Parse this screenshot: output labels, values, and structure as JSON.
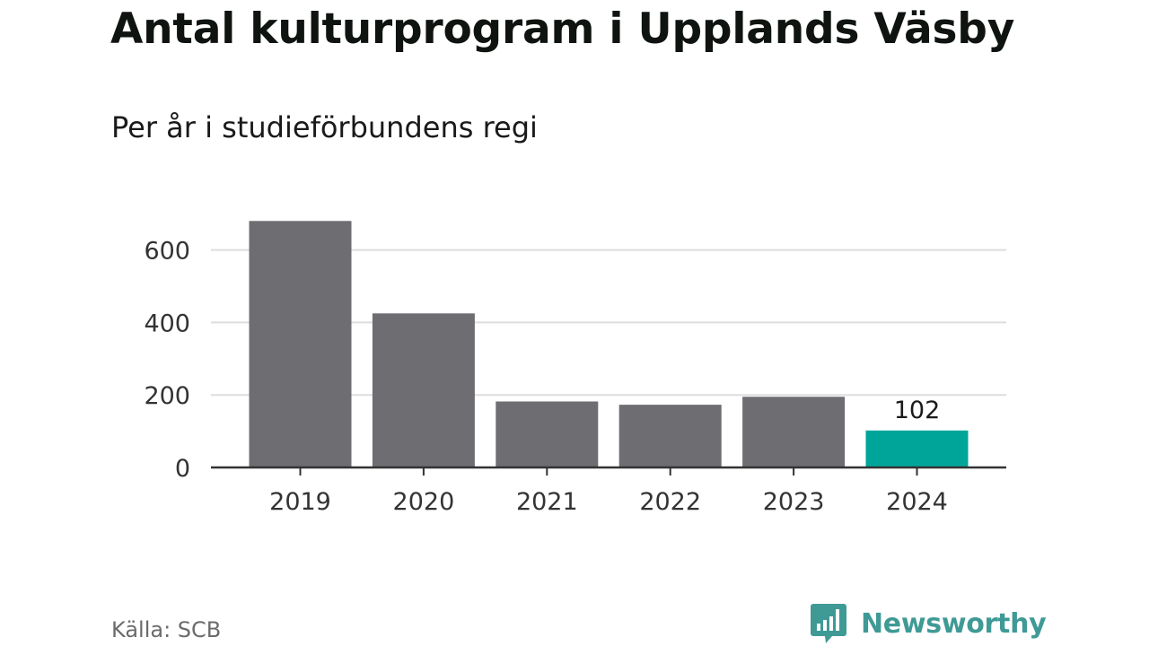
{
  "title": "Antal kulturprogram i Upplands Väsby",
  "subtitle": "Per år i studieförbundens regi",
  "source": "Källa: SCB",
  "brand": {
    "name": "Newsworthy",
    "icon": "newsworthy-logo-icon",
    "color": "#3f9a96"
  },
  "colors": {
    "bar": "#6e6d72",
    "highlight": "#00a59a",
    "grid": "#dddddd",
    "axis": "#333333"
  },
  "chart_data": {
    "type": "bar",
    "categories": [
      "2019",
      "2020",
      "2021",
      "2022",
      "2023",
      "2024"
    ],
    "values": [
      680,
      425,
      182,
      173,
      195,
      102
    ],
    "highlight_index": 5,
    "data_labels": [
      {
        "index": 5,
        "text": "102"
      }
    ],
    "title": "Antal kulturprogram i Upplands Väsby",
    "subtitle": "Per år i studieförbundens regi",
    "xlabel": "",
    "ylabel": "",
    "ylim": [
      0,
      680
    ],
    "yticks": [
      0,
      200,
      400,
      600
    ],
    "grid": true,
    "legend": "none"
  }
}
